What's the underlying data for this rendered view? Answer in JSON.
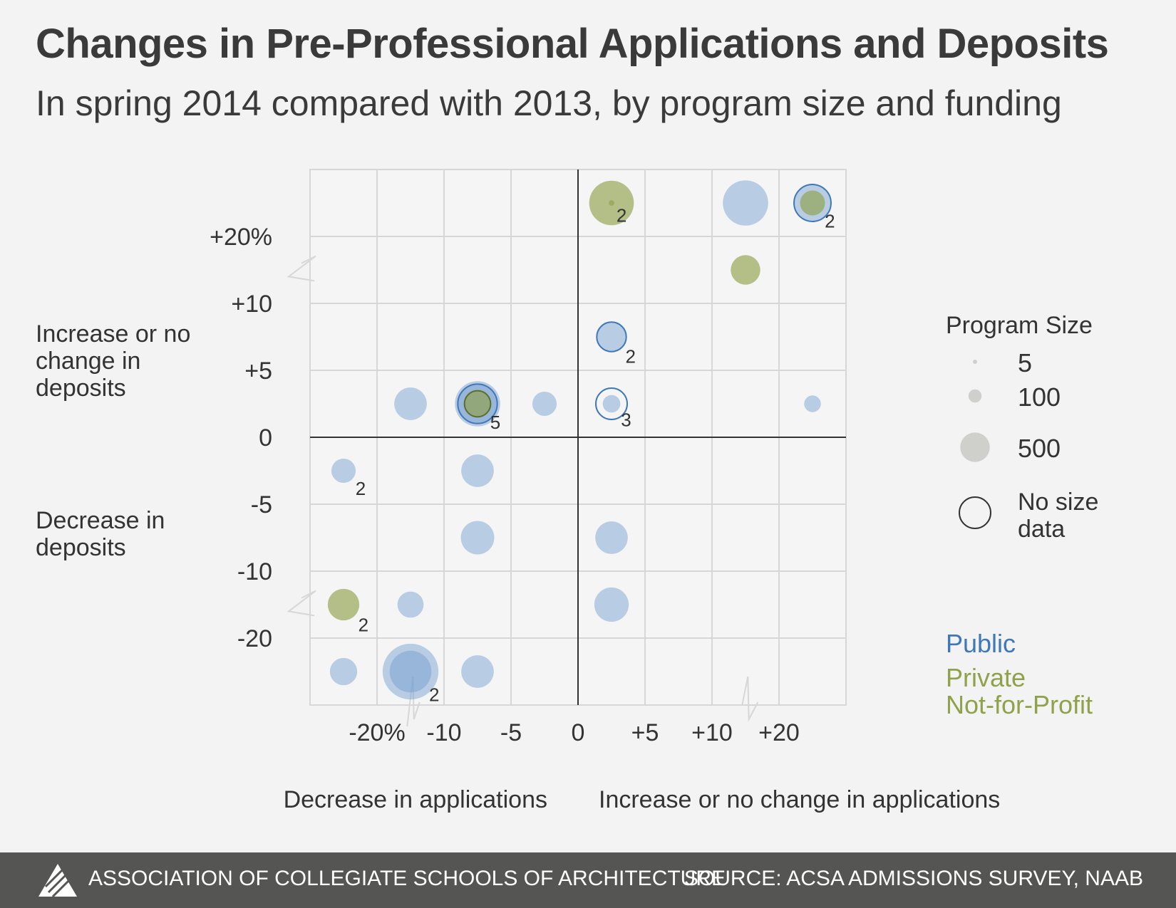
{
  "header": {
    "title": "Changes in Pre-Professional Applications and Deposits",
    "subtitle": "In spring 2014 compared with 2013, by program size and funding"
  },
  "footer": {
    "organization": "ASSOCIATION OF COLLEGIATE SCHOOLS OF ARCHITECTURE",
    "source": "SOURCE: ACSA ADMISSIONS SURVEY, NAAB",
    "logo_icon": "acsa-logo-icon"
  },
  "colors": {
    "public": "#6f9bcf",
    "public_stroke": "#3f78b8",
    "private": "#8fa24a",
    "size_legend": "#cfd0cc",
    "grid": "#d7d7d7",
    "axis": "#333333"
  },
  "chart_data": {
    "type": "scatter",
    "x_tick_labels": [
      "-20%",
      "-10",
      "-5",
      "0",
      "+5",
      "+10",
      "+20"
    ],
    "y_tick_labels": [
      "+20%",
      "+10",
      "+5",
      "0",
      "-5",
      "-10",
      "-20"
    ],
    "x_ticks": [
      -20,
      -10,
      -5,
      0,
      5,
      10,
      20
    ],
    "y_ticks": [
      20,
      10,
      5,
      0,
      -5,
      -10,
      -20
    ],
    "x_axis_break": true,
    "y_axis_break": true,
    "grid": true,
    "quadrant_labels": {
      "y_upper": "Increase or no change in deposits",
      "y_lower": "Decrease in deposits",
      "x_left": "Decrease in applications",
      "x_right": "Increase or no change in applications"
    },
    "legend_size": {
      "title": "Program Size",
      "entries": [
        {
          "label": "5",
          "size": 5
        },
        {
          "label": "100",
          "size": 100
        },
        {
          "label": "500",
          "size": 500
        }
      ],
      "no_size_label": "No size data"
    },
    "legend_funding": [
      {
        "key": "public",
        "label": "Public"
      },
      {
        "key": "private",
        "label": "Private Not-for-Profit"
      }
    ],
    "points": [
      {
        "x": 2.5,
        "y": 22.5,
        "size": 320,
        "funding": "private"
      },
      {
        "x": 2.5,
        "y": 22.5,
        "size": 5,
        "funding": "private",
        "count": "2"
      },
      {
        "x": 12.5,
        "y": 22.5,
        "size": 330,
        "funding": "public"
      },
      {
        "x": 22.5,
        "y": 22.5,
        "size": 220,
        "funding": "public",
        "outline": true
      },
      {
        "x": 22.5,
        "y": 22.5,
        "size": 100,
        "funding": "private",
        "count": "2"
      },
      {
        "x": 12.5,
        "y": 12.5,
        "size": 140,
        "funding": "private"
      },
      {
        "x": 2.5,
        "y": 7.5,
        "size": 140,
        "funding": "public",
        "outline": true,
        "count": "2"
      },
      {
        "x": -12.5,
        "y": 2.5,
        "size": 170,
        "funding": "public"
      },
      {
        "x": -7.5,
        "y": 2.5,
        "size": 330,
        "funding": "public"
      },
      {
        "x": -7.5,
        "y": 2.5,
        "size": 250,
        "funding": "public",
        "outline": true
      },
      {
        "x": -7.5,
        "y": 2.5,
        "size": 110,
        "funding": "private",
        "outline": true,
        "count": "5"
      },
      {
        "x": -2.5,
        "y": 2.5,
        "size": 95,
        "funding": "public"
      },
      {
        "x": 2.5,
        "y": 2.5,
        "no_size": true,
        "funding": "public"
      },
      {
        "x": 2.5,
        "y": 2.5,
        "size": 50,
        "funding": "public",
        "count": "3"
      },
      {
        "x": 22.5,
        "y": 2.5,
        "size": 45,
        "funding": "public"
      },
      {
        "x": -22.5,
        "y": -2.5,
        "size": 95,
        "funding": "public",
        "count": "2"
      },
      {
        "x": -7.5,
        "y": -2.5,
        "size": 170,
        "funding": "public"
      },
      {
        "x": -7.5,
        "y": -7.5,
        "size": 180,
        "funding": "public"
      },
      {
        "x": 2.5,
        "y": -7.5,
        "size": 170,
        "funding": "public"
      },
      {
        "x": -22.5,
        "y": -12.5,
        "size": 160,
        "funding": "private",
        "count": "2"
      },
      {
        "x": -12.5,
        "y": -12.5,
        "size": 110,
        "funding": "public"
      },
      {
        "x": 2.5,
        "y": -12.5,
        "size": 190,
        "funding": "public"
      },
      {
        "x": -22.5,
        "y": -22.5,
        "size": 120,
        "funding": "public"
      },
      {
        "x": -12.5,
        "y": -22.5,
        "size": 500,
        "funding": "public"
      },
      {
        "x": -12.5,
        "y": -22.5,
        "size": 280,
        "funding": "public",
        "count": "2"
      },
      {
        "x": -7.5,
        "y": -22.5,
        "size": 170,
        "funding": "public"
      }
    ]
  }
}
